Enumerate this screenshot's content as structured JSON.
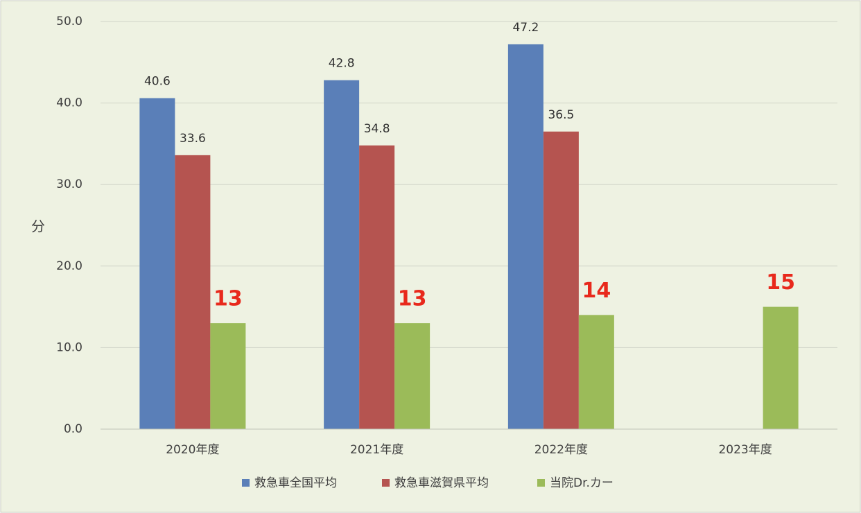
{
  "chart_data": {
    "type": "bar",
    "y_label": "分",
    "categories": [
      "2020年度",
      "2021年度",
      "2022年度",
      "2023年度"
    ],
    "series": [
      {
        "name": "救急車全国平均",
        "color": "#5a7fb8",
        "values": [
          40.6,
          42.8,
          47.2,
          null
        ]
      },
      {
        "name": "救急車滋賀県平均",
        "color": "#b55450",
        "values": [
          33.6,
          34.8,
          36.5,
          null
        ]
      },
      {
        "name": "当院Dr.カー",
        "color": "#9bbb59",
        "values": [
          13,
          13,
          14,
          15
        ]
      }
    ],
    "ylim": [
      0,
      50
    ],
    "yticks": [
      {
        "value": 0,
        "label": "0.0"
      },
      {
        "value": 10,
        "label": "10.0"
      },
      {
        "value": 20,
        "label": "20.0"
      },
      {
        "value": 30,
        "label": "30.0"
      },
      {
        "value": 40,
        "label": "40.0"
      },
      {
        "value": 50,
        "label": "50.0"
      }
    ],
    "grid": true
  }
}
